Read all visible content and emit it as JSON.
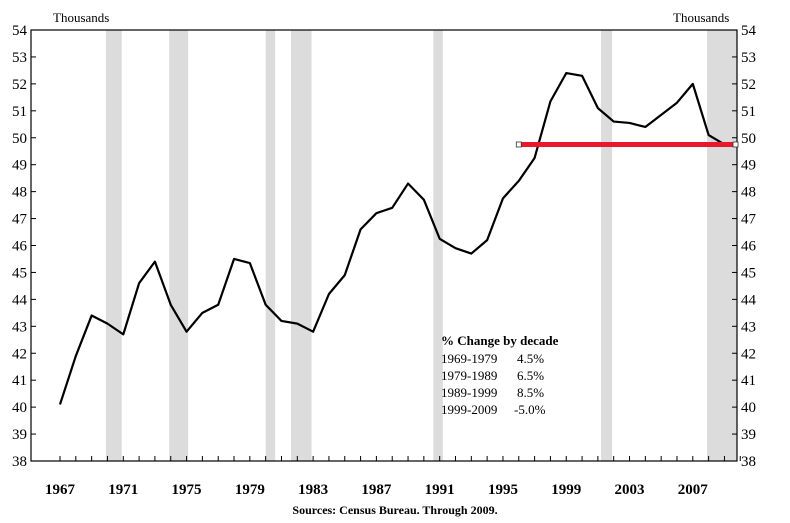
{
  "chart_data": {
    "type": "line",
    "ylabel_left": "Thousands",
    "ylabel_right": "Thousands",
    "source": "Sources: Census Bureau.  Through  2009.",
    "xlim": [
      1967,
      2010.3
    ],
    "ylim": [
      38,
      54
    ],
    "x_ticks": [
      1967,
      1971,
      1975,
      1979,
      1983,
      1987,
      1991,
      1995,
      1999,
      2003,
      2007
    ],
    "y_ticks": [
      38,
      39,
      40,
      41,
      42,
      43,
      44,
      45,
      46,
      47,
      48,
      49,
      50,
      51,
      52,
      53,
      54
    ],
    "recessions": [
      [
        1969.9,
        1970.9
      ],
      [
        1973.9,
        1975.1
      ],
      [
        1980.0,
        1980.6
      ],
      [
        1981.6,
        1982.9
      ],
      [
        1990.6,
        1991.2
      ],
      [
        2001.2,
        2001.9
      ],
      [
        2007.9,
        2010.3
      ]
    ],
    "series": [
      {
        "x": [
          1967,
          1968,
          1969,
          1970,
          1971,
          1972,
          1973,
          1974,
          1975,
          1976,
          1977,
          1978,
          1979,
          1980,
          1981,
          1982,
          1983,
          1984,
          1985,
          1986,
          1987,
          1988,
          1989,
          1990,
          1991,
          1992,
          1993,
          1994,
          1995,
          1996,
          1997,
          1998,
          1999,
          2000,
          2001,
          2002,
          2003,
          2004,
          2005,
          2006,
          2007,
          2008,
          2009
        ],
        "values": [
          40.1,
          41.9,
          43.4,
          43.1,
          42.7,
          44.6,
          45.4,
          43.8,
          42.8,
          43.5,
          43.8,
          45.5,
          45.35,
          43.8,
          43.2,
          43.1,
          42.8,
          44.2,
          44.9,
          46.6,
          47.2,
          47.4,
          48.3,
          47.7,
          46.25,
          45.9,
          45.7,
          46.2,
          47.75,
          48.4,
          49.25,
          51.35,
          52.4,
          52.3,
          51.1,
          50.6,
          50.55,
          50.4,
          50.85,
          51.3,
          52.0,
          50.1,
          49.75
        ]
      }
    ],
    "reference_line": {
      "x": [
        1996.0,
        2009.7
      ],
      "y": 49.75,
      "color": "#e8192c"
    },
    "line_color": "#000000",
    "recession_color": "#dcdcdc",
    "annotation": {
      "title": "% Change by decade",
      "rows": [
        {
          "period": "1969-1979",
          "value": "4.5%"
        },
        {
          "period": "1979-1989",
          "value": "6.5%"
        },
        {
          "period": "1989-1999",
          "value": "8.5%"
        },
        {
          "period": "1999-2009",
          "value": "-5.0%"
        }
      ]
    }
  }
}
